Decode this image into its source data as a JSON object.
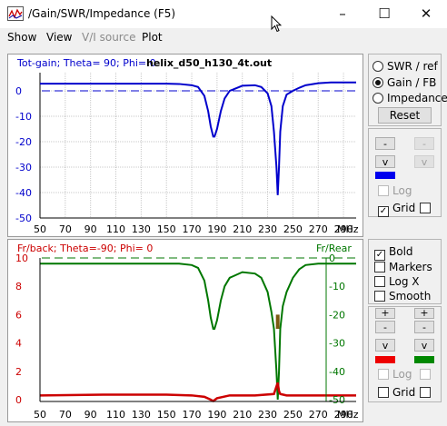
{
  "window": {
    "title": "/Gain/SWR/Impedance (F5)",
    "minimize_glyph": "–",
    "maximize_glyph": "☐",
    "close_glyph": "✕"
  },
  "menu": [
    "Show",
    "View",
    "V/I source",
    "Plot"
  ],
  "gain_panel": {
    "header": "Tot-gain; Theta= 90; Phi= 0",
    "filename": "helix_d50_h130_4t.out",
    "unit": "MHz",
    "color": "#0000cc",
    "x_ticks": [
      "50",
      "70",
      "90",
      "110",
      "130",
      "150",
      "170",
      "190",
      "210",
      "230",
      "250",
      "270",
      "290"
    ],
    "y_ticks": [
      "0",
      "-10",
      "-20",
      "-30",
      "-40",
      "-50"
    ]
  },
  "fb_panel": {
    "header": "Fr/back; Theta=-90; Phi= 0",
    "right_header": "Fr/Rear",
    "unit": "MHz",
    "left_color": "#cc0000",
    "right_color": "#007700",
    "x_ticks": [
      "50",
      "70",
      "90",
      "110",
      "130",
      "150",
      "170",
      "190",
      "210",
      "230",
      "250",
      "270",
      "290"
    ],
    "y_left_ticks": [
      "10",
      "8",
      "6",
      "4",
      "2",
      "0"
    ],
    "y_right_ticks": [
      "0",
      "-10",
      "-20",
      "-30",
      "-40",
      "-50"
    ]
  },
  "mode_group": {
    "options": [
      "SWR / ref",
      "Gain / FB",
      "Impedance"
    ],
    "selected": "Gain / FB",
    "reset_label": "Reset"
  },
  "top_controls": {
    "minus_label": "-",
    "v_label": "v",
    "log_label": "Log",
    "grid_label": "Grid",
    "grid_checked": true,
    "swatch_color": "#0000ee"
  },
  "bottom_options": {
    "items": [
      {
        "label": "Bold",
        "checked": true
      },
      {
        "label": "Markers",
        "checked": false
      },
      {
        "label": "Log X",
        "checked": false
      },
      {
        "label": "Smooth",
        "checked": false
      }
    ]
  },
  "bottom_controls": {
    "plus_label": "+",
    "minus_label": "-",
    "v_label": "v",
    "log_label": "Log",
    "grid_label": "Grid",
    "left_swatch": "#ee0000",
    "right_swatch": "#008800"
  },
  "chart_data": [
    {
      "type": "line",
      "title": "Tot-gain; Theta= 90; Phi= 0",
      "xlabel": "MHz",
      "xlim": [
        50,
        300
      ],
      "ylim": [
        -50,
        5
      ],
      "grid": true,
      "series": [
        {
          "x": [
            50,
            100,
            150,
            160,
            170,
            175,
            180,
            183,
            185,
            187,
            188,
            190,
            193,
            196,
            200,
            210,
            220,
            225,
            230,
            233,
            235,
            237,
            238,
            239,
            240,
            242,
            245,
            250,
            255,
            260,
            270,
            280,
            290,
            300
          ],
          "values": [
            2.8,
            2.8,
            2.8,
            2.7,
            2.2,
            1.5,
            -2,
            -8,
            -14,
            -18,
            -18,
            -15,
            -8,
            -3,
            0,
            2,
            2.2,
            1.5,
            -1,
            -6,
            -16,
            -30,
            -41,
            -30,
            -16,
            -6,
            -1.5,
            0,
            1.2,
            2.2,
            3,
            3.3,
            3.3,
            3.3
          ]
        }
      ],
      "reference_line": 0
    },
    {
      "type": "line",
      "title": "Fr/back; Theta=-90; Phi= 0",
      "xlabel": "MHz",
      "xlim": [
        50,
        300
      ],
      "y_left_range": [
        0,
        10
      ],
      "y_right_range": [
        -50,
        0
      ],
      "grid": false,
      "series": [
        {
          "name": "Fr/Rear",
          "axis": "right",
          "x": [
            50,
            100,
            150,
            160,
            170,
            175,
            180,
            183,
            185,
            187,
            188,
            190,
            193,
            196,
            200,
            210,
            220,
            225,
            230,
            233,
            235,
            237,
            238,
            239,
            240,
            242,
            245,
            250,
            255,
            260,
            270,
            280,
            290,
            300
          ],
          "values": [
            -2,
            -2,
            -2,
            -2,
            -2.5,
            -3.5,
            -8,
            -15,
            -21,
            -25,
            -25,
            -22,
            -15,
            -10,
            -7,
            -5,
            -5.5,
            -7,
            -12,
            -19,
            -25,
            -40,
            -50,
            -40,
            -25,
            -17,
            -12,
            -7,
            -4,
            -2.5,
            -2,
            -2,
            -2,
            -2
          ]
        },
        {
          "name": "Fr/back",
          "axis": "left",
          "x": [
            50,
            100,
            150,
            170,
            180,
            185,
            187,
            190,
            200,
            220,
            235,
            238,
            239,
            240,
            245,
            250,
            270,
            300
          ],
          "values": [
            0.3,
            0.35,
            0.35,
            0.3,
            0.2,
            0.0,
            -0.1,
            0.1,
            0.3,
            0.3,
            0.4,
            1.2,
            0.6,
            0.4,
            0.3,
            0.3,
            0.3,
            0.3
          ]
        }
      ],
      "reference_line": 0
    }
  ]
}
